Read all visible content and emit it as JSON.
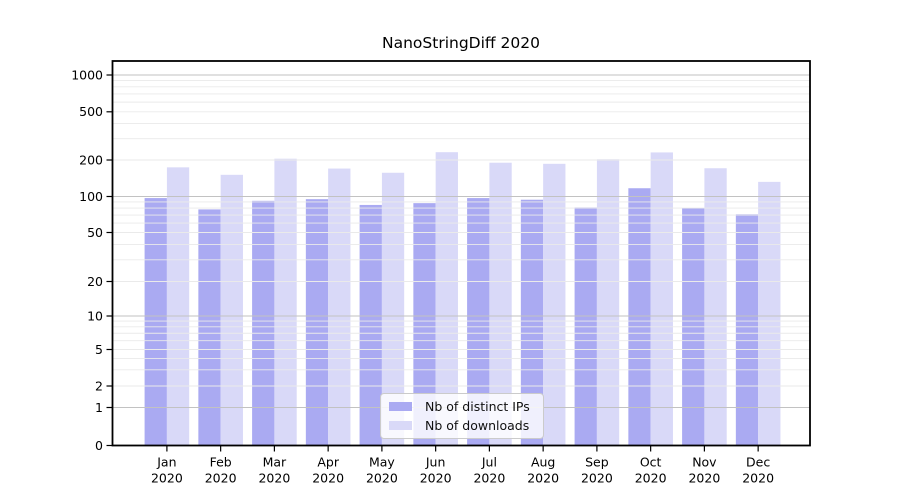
{
  "chart_data": {
    "type": "bar",
    "title": "NanoStringDiff 2020",
    "categories": [
      "Jan",
      "Feb",
      "Mar",
      "Apr",
      "May",
      "Jun",
      "Jul",
      "Aug",
      "Sep",
      "Oct",
      "Nov",
      "Dec"
    ],
    "category_line2": "2020",
    "series": [
      {
        "name": "Nb of distinct IPs",
        "color": "#aaaaf2",
        "values": [
          97,
          78,
          92,
          95,
          85,
          88,
          97,
          94,
          81,
          117,
          80,
          71
        ]
      },
      {
        "name": "Nb of downloads",
        "color": "#d9d9f8",
        "values": [
          174,
          151,
          205,
          170,
          157,
          232,
          190,
          186,
          203,
          231,
          171,
          132
        ]
      }
    ],
    "y_ticks": [
      0,
      1,
      2,
      5,
      10,
      20,
      50,
      100,
      200,
      500,
      1000
    ],
    "y_scale": "log (symlog near zero)",
    "ylim": [
      0,
      1300
    ],
    "grid": true,
    "legend_position": "lower-center",
    "colors": {
      "major_grid": "#c2c2c2",
      "minor_grid": "#eaeaea",
      "frame": "#000000"
    }
  }
}
